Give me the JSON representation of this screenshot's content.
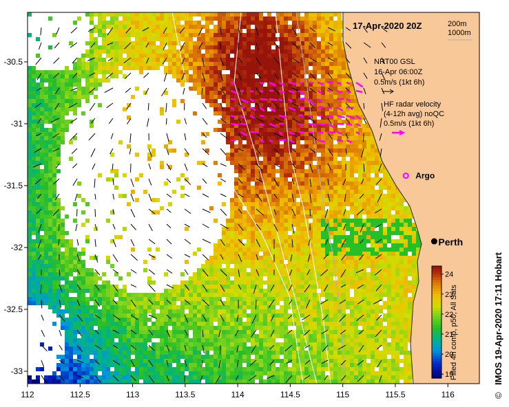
{
  "map": {
    "date_label": "17-Apr-2020 20Z",
    "depth_contours": [
      "200m",
      "1000m"
    ],
    "lon_ticks": [
      "112",
      "112.5",
      "113",
      "113.5",
      "114",
      "114.5",
      "115",
      "115.5",
      "116"
    ],
    "lat_ticks": [
      "-30.5",
      "-31",
      "-31.5",
      "-32",
      "-32.5",
      "-33"
    ],
    "lon_range": [
      112,
      116.3
    ],
    "lat_range": [
      -33.1,
      -30.1
    ],
    "city": "Perth",
    "city_lon": 115.87,
    "city_lat": -31.95,
    "argo_label": "Argo",
    "argo_lon": 115.6,
    "argo_lat": -31.42
  },
  "legend": {
    "model_title": "NRT00 GSL",
    "model_time": "16-Apr 06:00Z",
    "model_scale": "0.5m/s (1kt 6h)",
    "radar_title": "HF radar velocity",
    "radar_avg": "(4-12h avg) noQC",
    "radar_scale": "0.5m/s (1kt 6h)",
    "radar_color": "#ff00ff"
  },
  "colorbar": {
    "ticks": [
      "24",
      "23",
      "22",
      "21",
      "20",
      "19"
    ],
    "min": 18.8,
    "max": 24.4,
    "label": "Filled 4h comp, p50, All Sats"
  },
  "footer": {
    "credit": "IMOS 19-Apr-2020 17:11 Hobart",
    "copyright": "©"
  },
  "colors": {
    "land": "#f8c898",
    "hot": "#a01e0a",
    "warm": "#e8a000",
    "cool": "#30c020",
    "cold": "#0050c0"
  }
}
